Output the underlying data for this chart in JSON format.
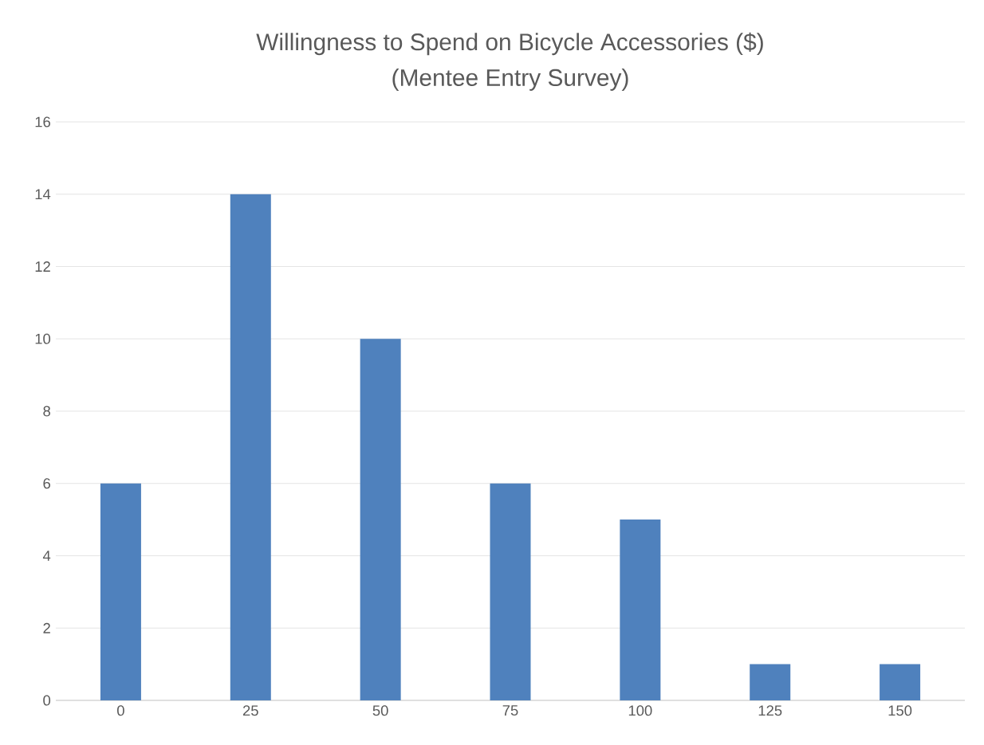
{
  "chart_data": {
    "type": "bar",
    "title": "Willingness to Spend on Bicycle Accessories ($)",
    "subtitle": "(Mentee Entry Survey)",
    "categories": [
      "0",
      "25",
      "50",
      "75",
      "100",
      "125",
      "150"
    ],
    "values": [
      6,
      14,
      10,
      6,
      5,
      1,
      1
    ],
    "color": "#4f81bd",
    "ylim": [
      0,
      16
    ],
    "yticks": [
      0,
      2,
      4,
      6,
      8,
      10,
      12,
      14,
      16
    ],
    "grid": "y"
  }
}
